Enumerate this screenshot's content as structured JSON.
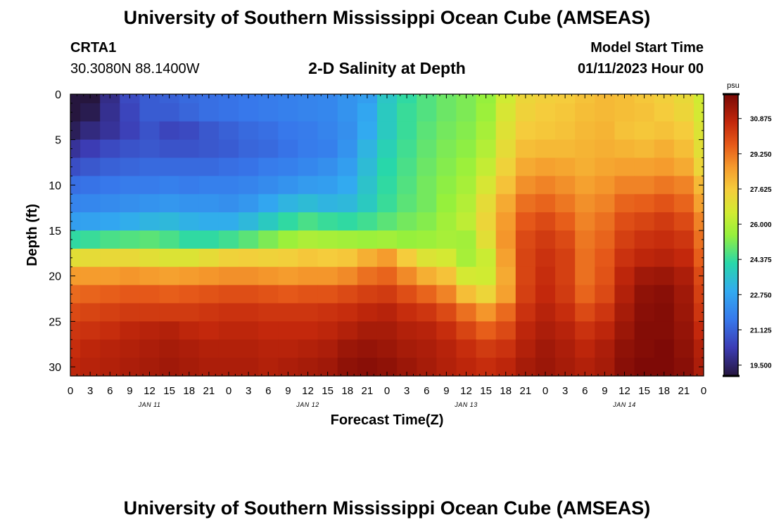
{
  "header": {
    "title": "University of Southern Mississippi Ocean Cube (AMSEAS)",
    "station_id": "CRTA1",
    "coordinates": "30.3080N  88.1400W",
    "subtitle": "2-D Salinity at Depth",
    "model_start_label": "Model Start Time",
    "model_start_value": "01/11/2023 Hour 00"
  },
  "footer": {
    "title": "University of Southern Mississippi Ocean Cube (AMSEAS)"
  },
  "colors": {
    "background": "#ffffff",
    "axis": "#000000"
  },
  "chart_data": {
    "type": "heatmap",
    "title": "2-D Salinity at Depth",
    "xlabel": "Forecast Time(Z)",
    "ylabel": "Depth (ft)",
    "x_hours": [
      0,
      3,
      6,
      9,
      12,
      15,
      18,
      21,
      24,
      27,
      30,
      33,
      36,
      39,
      42,
      45,
      48,
      51,
      54,
      57,
      60,
      63,
      66,
      69,
      72,
      75,
      78,
      81,
      84,
      87,
      90,
      93,
      96
    ],
    "x_tick_labels": [
      "0",
      "3",
      "6",
      "9",
      "12",
      "15",
      "18",
      "21",
      "0",
      "3",
      "6",
      "9",
      "12",
      "15",
      "18",
      "21",
      "0",
      "3",
      "6",
      "9",
      "12",
      "15",
      "18",
      "21",
      "0",
      "3",
      "6",
      "9",
      "12",
      "15",
      "18",
      "21",
      "0"
    ],
    "date_labels": [
      {
        "label": "JAN 11",
        "hour": 12
      },
      {
        "label": "JAN 12",
        "hour": 36
      },
      {
        "label": "JAN 13",
        "hour": 60
      },
      {
        "label": "JAN 14",
        "hour": 84
      }
    ],
    "y_ticks": [
      0,
      5,
      10,
      15,
      20,
      25,
      30
    ],
    "ylim": [
      0,
      31
    ],
    "xlim": [
      0,
      96
    ],
    "depths_ft": [
      0,
      2,
      4,
      6,
      8,
      10,
      12,
      14,
      16,
      18,
      20,
      22,
      24,
      26,
      28,
      30
    ],
    "salinity_psu": [
      [
        18.5,
        19.0,
        19.8,
        20.6,
        21.0,
        21.1,
        21.3,
        21.4,
        21.5,
        21.6,
        21.7,
        21.8,
        21.9,
        22.0,
        22.3,
        22.6,
        23.7,
        24.3,
        24.7,
        25.0,
        25.2,
        25.5,
        26.5,
        27.3,
        27.5,
        27.6,
        27.8,
        28.0,
        27.9,
        27.7,
        27.5,
        27.2,
        26.5
      ],
      [
        18.8,
        19.2,
        19.9,
        20.5,
        21.0,
        21.0,
        21.2,
        21.4,
        21.5,
        21.6,
        21.7,
        21.8,
        21.9,
        22.0,
        22.3,
        22.8,
        23.8,
        24.4,
        24.7,
        25.0,
        25.2,
        25.6,
        26.7,
        27.4,
        27.6,
        27.7,
        27.9,
        28.0,
        27.9,
        27.8,
        27.6,
        27.3,
        26.6
      ],
      [
        19.3,
        19.7,
        20.0,
        20.4,
        20.8,
        20.5,
        20.6,
        20.9,
        21.1,
        21.3,
        21.4,
        21.6,
        21.7,
        21.9,
        22.2,
        22.9,
        23.8,
        24.4,
        24.8,
        25.1,
        25.3,
        25.8,
        26.9,
        27.6,
        27.7,
        27.8,
        28.0,
        28.1,
        27.8,
        27.7,
        27.8,
        27.6,
        26.8
      ],
      [
        20.0,
        20.3,
        20.6,
        20.8,
        20.9,
        20.8,
        20.8,
        20.9,
        21.0,
        21.2,
        21.3,
        21.5,
        21.7,
        21.8,
        22.3,
        23.2,
        24.0,
        24.5,
        24.9,
        25.2,
        25.4,
        26.0,
        27.1,
        27.9,
        28.0,
        28.0,
        28.1,
        28.2,
        28.1,
        28.0,
        28.2,
        27.9,
        27.0
      ],
      [
        20.7,
        20.9,
        21.1,
        21.2,
        21.3,
        21.3,
        21.3,
        21.3,
        21.4,
        21.5,
        21.7,
        21.8,
        22.0,
        22.2,
        22.6,
        23.4,
        24.2,
        24.6,
        25.0,
        25.3,
        25.6,
        26.3,
        27.4,
        28.3,
        28.5,
        28.4,
        28.2,
        28.4,
        28.5,
        28.5,
        28.6,
        28.3,
        27.3
      ],
      [
        21.4,
        21.5,
        21.6,
        21.7,
        21.7,
        21.8,
        21.7,
        21.8,
        21.8,
        21.9,
        22.1,
        22.3,
        22.5,
        22.6,
        22.9,
        23.6,
        24.3,
        24.7,
        25.1,
        25.4,
        25.8,
        26.7,
        27.8,
        28.8,
        29.0,
        28.8,
        28.5,
        28.7,
        29.0,
        29.0,
        29.2,
        29.0,
        28.0
      ],
      [
        21.9,
        22.0,
        22.1,
        22.2,
        22.3,
        22.4,
        22.3,
        22.3,
        22.2,
        22.4,
        22.8,
        23.2,
        23.4,
        23.2,
        23.3,
        23.8,
        24.4,
        24.8,
        25.1,
        25.5,
        26.0,
        27.1,
        28.3,
        29.3,
        29.5,
        29.2,
        28.8,
        29.0,
        29.5,
        29.6,
        29.8,
        29.5,
        28.5
      ],
      [
        22.6,
        22.7,
        22.8,
        23.0,
        23.2,
        23.3,
        23.1,
        23.0,
        23.0,
        23.3,
        23.8,
        24.3,
        24.6,
        24.4,
        24.3,
        24.5,
        24.8,
        25.1,
        25.3,
        25.7,
        26.2,
        27.3,
        28.6,
        29.7,
        30.0,
        29.6,
        29.0,
        29.3,
        29.9,
        30.1,
        30.3,
        30.0,
        29.0
      ],
      [
        24.3,
        24.4,
        24.6,
        24.7,
        24.8,
        24.6,
        24.3,
        24.3,
        24.5,
        24.8,
        25.2,
        25.6,
        25.9,
        25.8,
        25.7,
        25.6,
        25.7,
        25.5,
        25.6,
        25.8,
        25.7,
        27.0,
        28.7,
        30.0,
        30.3,
        30.0,
        29.2,
        29.5,
        30.2,
        30.5,
        30.6,
        30.4,
        29.3
      ],
      [
        27.0,
        27.1,
        27.2,
        27.2,
        27.0,
        26.8,
        26.8,
        27.1,
        27.4,
        27.5,
        27.4,
        27.5,
        27.7,
        27.6,
        27.7,
        28.2,
        28.6,
        27.6,
        26.8,
        26.6,
        25.8,
        26.4,
        28.5,
        30.1,
        30.5,
        30.2,
        29.3,
        29.7,
        30.5,
        30.8,
        30.9,
        30.7,
        29.6
      ],
      [
        28.6,
        28.6,
        28.6,
        28.7,
        28.6,
        28.5,
        28.6,
        28.7,
        28.8,
        28.8,
        28.7,
        28.6,
        28.7,
        28.7,
        28.9,
        29.3,
        29.5,
        28.9,
        28.2,
        27.8,
        26.6,
        26.5,
        28.3,
        30.1,
        30.6,
        30.2,
        29.3,
        29.8,
        30.8,
        31.3,
        31.4,
        31.1,
        30.0
      ],
      [
        29.4,
        29.5,
        29.6,
        29.7,
        29.7,
        29.6,
        29.7,
        29.8,
        29.9,
        29.9,
        29.8,
        29.7,
        29.8,
        29.8,
        30.0,
        30.2,
        30.3,
        29.9,
        29.5,
        29.0,
        27.9,
        27.3,
        28.5,
        30.2,
        30.7,
        30.3,
        29.5,
        30.0,
        31.0,
        31.6,
        31.7,
        31.3,
        30.2
      ],
      [
        30.0,
        30.1,
        30.2,
        30.3,
        30.3,
        30.3,
        30.3,
        30.4,
        30.5,
        30.5,
        30.4,
        30.4,
        30.4,
        30.5,
        30.6,
        30.8,
        30.9,
        30.6,
        30.4,
        30.0,
        29.3,
        28.7,
        29.4,
        30.5,
        30.9,
        30.6,
        30.0,
        30.4,
        31.2,
        31.7,
        31.8,
        31.4,
        30.4
      ],
      [
        30.4,
        30.5,
        30.6,
        30.8,
        30.9,
        31.0,
        30.8,
        30.7,
        30.8,
        30.8,
        30.7,
        30.7,
        30.7,
        30.8,
        31.0,
        31.2,
        31.2,
        31.0,
        30.9,
        30.6,
        30.1,
        29.6,
        30.0,
        30.8,
        31.1,
        30.9,
        30.5,
        30.8,
        31.4,
        31.8,
        31.8,
        31.5,
        30.7
      ],
      [
        30.6,
        30.8,
        30.9,
        31.0,
        31.1,
        31.2,
        31.1,
        31.0,
        31.0,
        31.0,
        30.9,
        30.9,
        31.0,
        31.1,
        31.4,
        31.5,
        31.4,
        31.2,
        31.1,
        30.9,
        30.6,
        30.3,
        30.5,
        31.0,
        31.3,
        31.1,
        30.8,
        31.1,
        31.6,
        31.8,
        31.9,
        31.6,
        31.0
      ],
      [
        30.8,
        30.9,
        31.0,
        31.1,
        31.2,
        31.3,
        31.2,
        31.1,
        31.1,
        31.1,
        31.0,
        31.1,
        31.2,
        31.3,
        31.6,
        31.7,
        31.6,
        31.4,
        31.2,
        31.0,
        30.8,
        30.6,
        30.8,
        31.2,
        31.4,
        31.2,
        31.0,
        31.2,
        31.7,
        31.9,
        31.9,
        31.7,
        31.1
      ]
    ],
    "colorbar": {
      "unit": "psu",
      "ticks": [
        "30.875",
        "29.250",
        "27.625",
        "26.000",
        "24.375",
        "22.750",
        "21.125",
        "19.500"
      ],
      "tick_values": [
        30.875,
        29.25,
        27.625,
        26.0,
        24.375,
        22.75,
        21.125,
        19.5
      ],
      "range": [
        19.0,
        32.0
      ]
    }
  }
}
